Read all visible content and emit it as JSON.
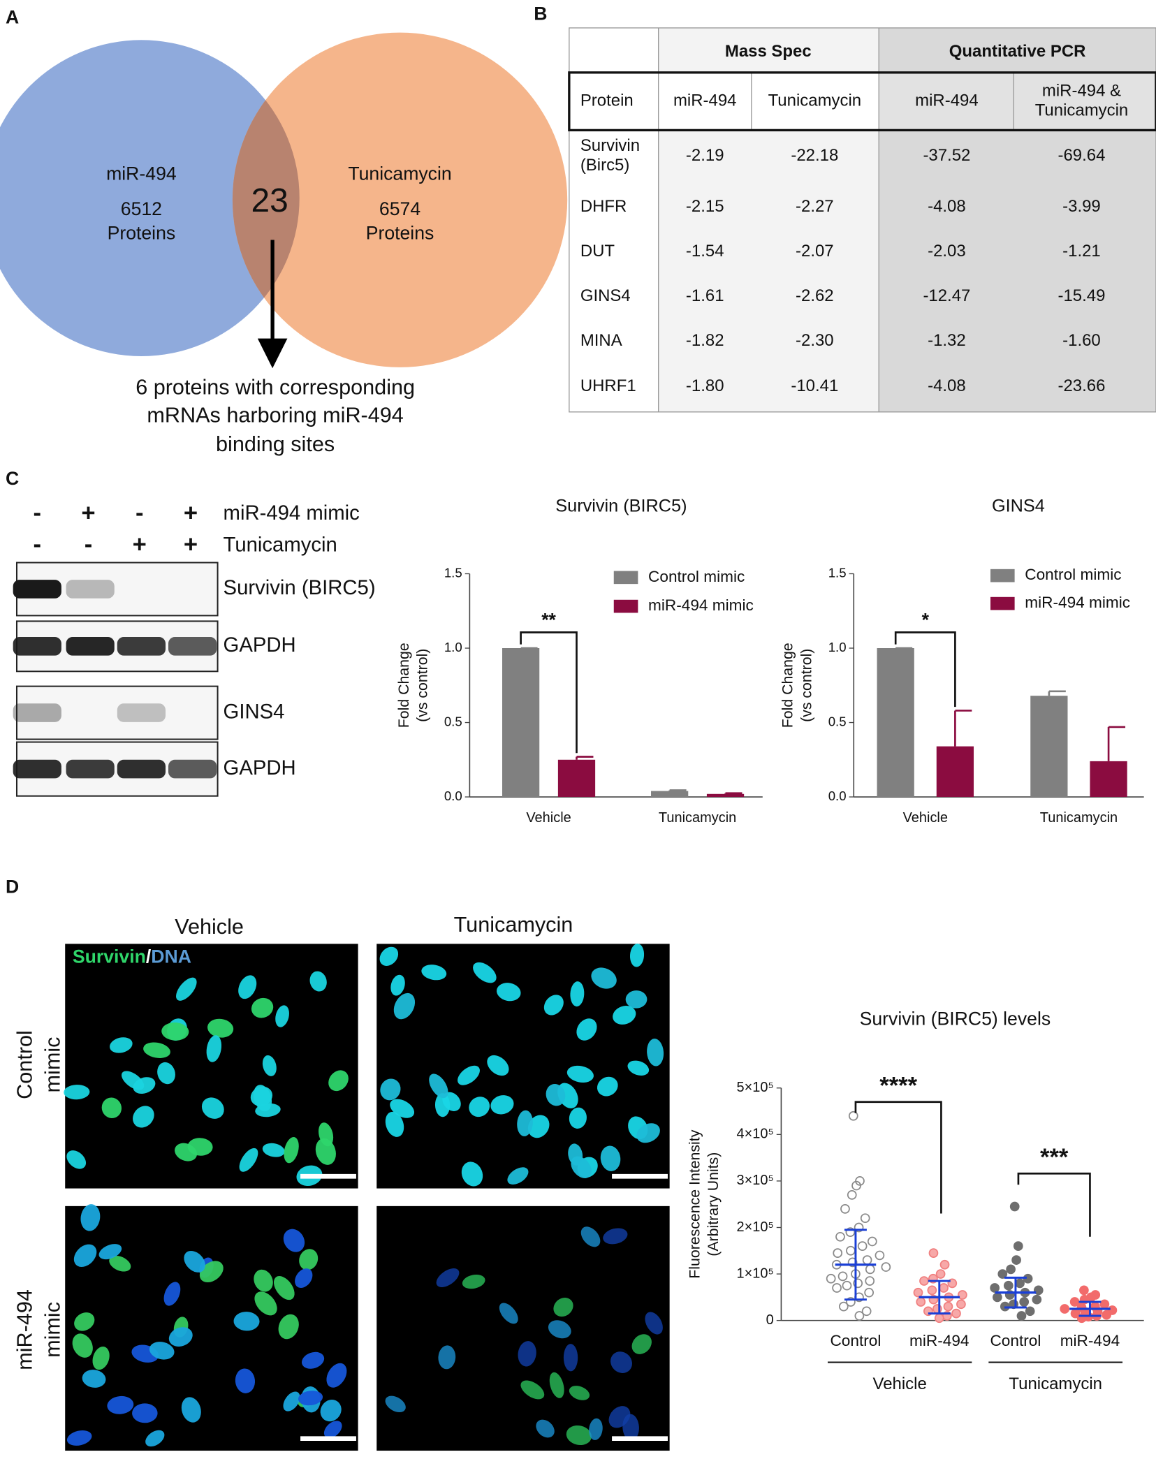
{
  "panels": [
    "A",
    "B",
    "C",
    "D"
  ],
  "venn": {
    "left": {
      "name": "miR-494",
      "count": "6512",
      "unit": "Proteins"
    },
    "right": {
      "name": "Tunicamycin",
      "count": "6574",
      "unit": "Proteins"
    },
    "overlap": "23",
    "caption": [
      "6 proteins with corresponding",
      "mRNAs harboring miR-494",
      "binding sites"
    ]
  },
  "table": {
    "groups": [
      "Mass Spec",
      "Quantitative PCR"
    ],
    "header": [
      "Protein",
      "miR-494",
      "Tunicamycin",
      "miR-494",
      [
        "miR-494 &",
        "Tunicamycin"
      ]
    ],
    "rows": [
      [
        [
          "Survivin",
          "(Birc5)"
        ],
        "-2.19",
        "-22.18",
        "-37.52",
        "-69.64"
      ],
      [
        "DHFR",
        "-2.15",
        "-2.27",
        "-4.08",
        "-3.99"
      ],
      [
        "DUT",
        "-1.54",
        "-2.07",
        "-2.03",
        "-1.21"
      ],
      [
        "GINS4",
        "-1.61",
        "-2.62",
        "-12.47",
        "-15.49"
      ],
      [
        "MINA",
        "-1.82",
        "-2.30",
        "-1.32",
        "-1.60"
      ],
      [
        "UHRF1",
        "-1.80",
        "-10.41",
        "-4.08",
        "-23.66"
      ]
    ]
  },
  "blots": {
    "conditions": [
      {
        "name": "miR-494 mimic",
        "signs": [
          "-",
          "+",
          "-",
          "+"
        ]
      },
      {
        "name": "Tunicamycin",
        "signs": [
          "-",
          "-",
          "+",
          "+"
        ]
      }
    ],
    "rows": [
      "Survivin (BIRC5)",
      "GAPDH",
      "GINS4",
      "GAPDH"
    ]
  },
  "images": {
    "columns": [
      "Vehicle",
      "Tunicamycin"
    ],
    "rows": [
      [
        "Control",
        "mimic"
      ],
      [
        "miR-494",
        "mimic"
      ]
    ],
    "stain": [
      "Survivin",
      "/",
      "DNA"
    ]
  },
  "chart_data": [
    {
      "type": "bar",
      "title": "Survivin (BIRC5)",
      "ylabel": [
        "Fold Change",
        "(vs control)"
      ],
      "categories": [
        "Vehicle",
        "Tunicamycin"
      ],
      "series": [
        {
          "name": "Control mimic",
          "color": "#808080",
          "values": [
            1.0,
            0.04
          ],
          "errors": [
            0,
            0.005
          ]
        },
        {
          "name": "miR-494 mimic",
          "color": "#8b0c40",
          "values": [
            0.25,
            0.02
          ],
          "errors": [
            0.02,
            0.005
          ]
        }
      ],
      "ylim": [
        0,
        1.5
      ],
      "yticks": [
        {
          "value": 0,
          "label": "0.0"
        },
        {
          "value": 0.5,
          "label": "0.5"
        },
        {
          "value": 1,
          "label": "1.0"
        },
        {
          "value": 1.5,
          "label": "1.5"
        }
      ],
      "annotation": "**"
    },
    {
      "type": "bar",
      "title": "GINS4",
      "ylabel": [
        "Fold Change",
        "(vs control)"
      ],
      "categories": [
        "Vehicle",
        "Tunicamycin"
      ],
      "series": [
        {
          "name": "Control mimic",
          "color": "#808080",
          "values": [
            1.0,
            0.68
          ],
          "errors": [
            0,
            0.03
          ]
        },
        {
          "name": "miR-494 mimic",
          "color": "#8b0c40",
          "values": [
            0.34,
            0.24
          ],
          "errors": [
            0.24,
            0.23
          ]
        }
      ],
      "ylim": [
        0,
        1.5
      ],
      "yticks": [
        {
          "value": 0,
          "label": "0.0"
        },
        {
          "value": 0.5,
          "label": "0.5"
        },
        {
          "value": 1,
          "label": "1.0"
        },
        {
          "value": 1.5,
          "label": "1.5"
        }
      ],
      "annotation": "*"
    },
    {
      "type": "strip",
      "title": "Survivin (BIRC5) levels",
      "ylabel": [
        "Fluorescence Intensity",
        "(Arbitrary Units)"
      ],
      "categories": [
        "Control",
        "miR-494",
        "Control",
        "miR-494"
      ],
      "group_labels": [
        "Vehicle",
        "Tunicamycin"
      ],
      "points": [
        [
          440000,
          300000,
          290000,
          270000,
          240000,
          220000,
          200000,
          190000,
          180000,
          170000,
          160000,
          150000,
          145000,
          140000,
          130000,
          125000,
          120000,
          115000,
          110000,
          100000,
          95000,
          90000,
          85000,
          80000,
          75000,
          70000,
          60000,
          50000,
          40000,
          30000,
          20000,
          10000
        ],
        [
          145000,
          120000,
          100000,
          90000,
          85000,
          80000,
          70000,
          65000,
          60000,
          55000,
          50000,
          45000,
          40000,
          35000,
          30000,
          25000,
          20000,
          15000,
          10000,
          5000
        ],
        [
          245000,
          160000,
          130000,
          110000,
          100000,
          90000,
          80000,
          75000,
          70000,
          65000,
          60000,
          55000,
          50000,
          45000,
          40000,
          35000,
          30000,
          20000,
          10000
        ],
        [
          65000,
          55000,
          50000,
          45000,
          40000,
          35000,
          30000,
          28000,
          25000,
          22000,
          20000,
          18000,
          15000,
          12000,
          10000,
          8000,
          5000
        ]
      ],
      "means": [
        120000,
        50000,
        60000,
        25000
      ],
      "sd": [
        75000,
        35000,
        32000,
        15000
      ],
      "fills": [
        "none",
        "#f7a8a8",
        "#6e6e6e",
        "#f26b6b"
      ],
      "strokes": [
        "#8a8a8a",
        "#f08080",
        "#6e6e6e",
        "#f26b6b"
      ],
      "mean_color": "#1a3fd6",
      "ylim": [
        0,
        500000
      ],
      "yticks": [
        0,
        {
          "value": 100000,
          "label": "1×10⁵"
        },
        {
          "value": 200000,
          "label": "2×10⁵"
        },
        {
          "value": 300000,
          "label": "3×10⁵"
        },
        {
          "value": 400000,
          "label": "4×10⁵"
        },
        {
          "value": 500000,
          "label": "5×10⁵"
        }
      ],
      "annotations": [
        "****",
        "***"
      ]
    }
  ]
}
